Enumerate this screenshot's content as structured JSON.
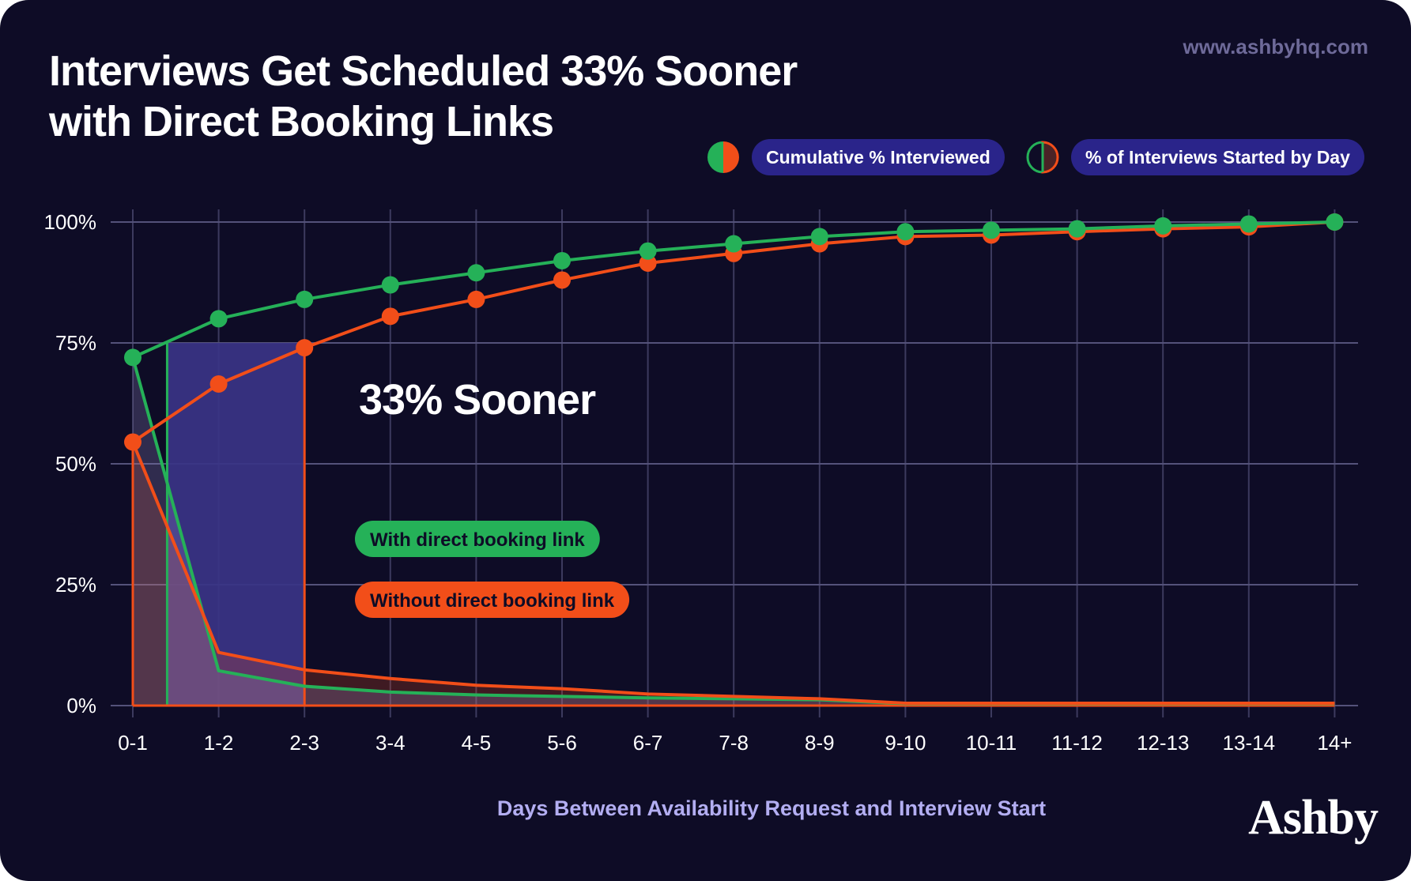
{
  "site_url": "www.ashbyhq.com",
  "brand": "Ashby",
  "legend": {
    "cumulative_label": "Cumulative % Interviewed",
    "started_label": "% of Interviews Started by Day"
  },
  "colors": {
    "background": "#0e0c26",
    "with_link": "#25b158",
    "without_link": "#f24e19",
    "highlight": "#3a3486",
    "pill": "#2a248a",
    "xlabel": "#b3aef2"
  },
  "chart_data": {
    "type": "line",
    "title": [
      "Interviews Get Scheduled 33% Sooner",
      "with Direct Booking Links"
    ],
    "xlabel": "Days Between Availability Request and Interview Start",
    "ylabel": "",
    "categories": [
      "0-1",
      "1-2",
      "2-3",
      "3-4",
      "4-5",
      "5-6",
      "6-7",
      "7-8",
      "8-9",
      "9-10",
      "10-11",
      "11-12",
      "12-13",
      "13-14",
      "14+"
    ],
    "ylim": [
      0,
      100
    ],
    "yticks": [
      "0%",
      "25%",
      "50%",
      "75%",
      "100%"
    ],
    "grid": true,
    "legend_position": "top-right",
    "series": [
      {
        "name": "With direct booking link",
        "kind": "cumulative",
        "values": [
          72,
          80,
          84,
          87,
          89.5,
          92,
          94,
          95.5,
          97,
          98,
          98.3,
          98.6,
          99.2,
          99.6,
          100
        ]
      },
      {
        "name": "Without direct booking link",
        "kind": "cumulative",
        "values": [
          54.5,
          66.5,
          74,
          80.5,
          84,
          88,
          91.5,
          93.5,
          95.5,
          97,
          97.3,
          98,
          98.6,
          99,
          100
        ]
      },
      {
        "name": "With direct booking link",
        "kind": "per_day",
        "values": [
          72,
          7.2,
          4,
          2.8,
          2.2,
          1.9,
          1.6,
          1.4,
          1.2,
          0.4,
          0.4,
          0.4,
          0.4,
          0.4,
          0.4
        ]
      },
      {
        "name": "Without direct booking link",
        "kind": "per_day",
        "values": [
          54.5,
          11,
          7.4,
          5.6,
          4.2,
          3.5,
          2.4,
          1.9,
          1.4,
          0.5,
          0.5,
          0.5,
          0.5,
          0.5,
          0.5
        ]
      }
    ],
    "annotations": {
      "highlight_text": "33% Sooner",
      "highlight_level": 75,
      "highlight_x_start": 0.4,
      "highlight_x_end": 2,
      "series_labels": [
        "With direct booking link",
        "Without direct booking link"
      ]
    }
  }
}
